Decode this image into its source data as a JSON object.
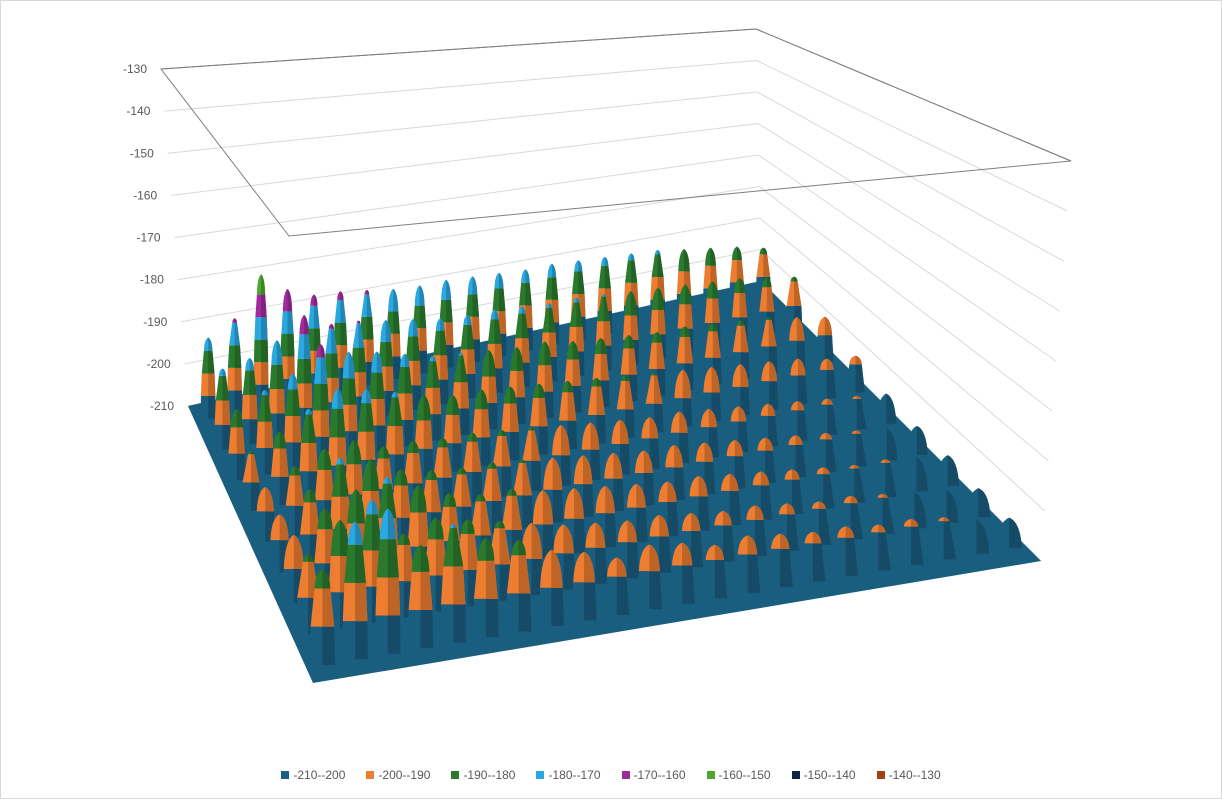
{
  "chart_data": {
    "type": "surface",
    "title": "",
    "z_axis": {
      "min": -210,
      "max": -130,
      "major_unit": 10,
      "tick_labels": [
        "-130",
        "-140",
        "-150",
        "-160",
        "-170",
        "-180",
        "-190",
        "-200",
        "-210"
      ]
    },
    "floor_value": -210,
    "legend_position": "bottom",
    "bands": [
      {
        "label": "-210--200",
        "from": -210,
        "to": -200,
        "color": "#1a5e7f"
      },
      {
        "label": "-200--190",
        "from": -200,
        "to": -190,
        "color": "#ed7d31"
      },
      {
        "label": "-190--180",
        "from": -190,
        "to": -180,
        "color": "#2a7a2e"
      },
      {
        "label": "-180--170",
        "from": -180,
        "to": -170,
        "color": "#2aa8e0"
      },
      {
        "label": "-170--160",
        "from": -170,
        "to": -160,
        "color": "#a12a9c"
      },
      {
        "label": "-160--150",
        "from": -160,
        "to": -150,
        "color": "#4ea72e"
      },
      {
        "label": "-150--140",
        "from": -150,
        "to": -140,
        "color": "#0e2841"
      },
      {
        "label": "-140--130",
        "from": -140,
        "to": -130,
        "color": "#a0430a"
      }
    ],
    "grid_rows": 9,
    "grid_cols": 22,
    "peaks": [
      [
        -185,
        -174,
        -172,
        -183,
        -179,
        -184,
        -186,
        -190,
        -192,
        -195,
        -193,
        -194,
        -196,
        -195,
        -196,
        -197,
        -197,
        -198,
        -198,
        -199,
        -201,
        -202
      ],
      [
        -188,
        -180,
        -176,
        -187,
        -184,
        -186,
        -188,
        -190,
        -192,
        -193,
        -194,
        -194,
        -195,
        -196,
        -196,
        -197,
        -198,
        -198,
        -199,
        -200,
        -201,
        -202
      ],
      [
        -190,
        -184,
        -180,
        -178,
        -182,
        -186,
        -188,
        -188,
        -190,
        -191,
        -192,
        -193,
        -194,
        -194,
        -195,
        -196,
        -197,
        -198,
        -199,
        -199,
        -200,
        -201
      ],
      [
        -192,
        -186,
        -178,
        -180,
        -185,
        -187,
        -188,
        -188,
        -189,
        -190,
        -191,
        -192,
        -193,
        -193,
        -194,
        -195,
        -196,
        -197,
        -198,
        -199,
        -200,
        -201
      ],
      [
        -192,
        -187,
        -183,
        -182,
        -186,
        -186,
        -187,
        -187,
        -188,
        -189,
        -190,
        -191,
        -192,
        -193,
        -193,
        -194,
        -195,
        -196,
        -197,
        -198,
        -199,
        -200
      ],
      [
        -189,
        -184,
        -178,
        -173,
        -175,
        -178,
        -181,
        -183,
        -183,
        -184,
        -185,
        -186,
        -187,
        -188,
        -189,
        -190,
        -191,
        -192,
        -193,
        -194,
        -196,
        -197
      ],
      [
        -183,
        -178,
        -174,
        -165,
        -170,
        -172,
        -175,
        -178,
        -179,
        -180,
        -181,
        -181,
        -183,
        -184,
        -185,
        -186,
        -186,
        -187,
        -188,
        -189,
        -191,
        -193
      ],
      [
        -177,
        -175,
        -170,
        -162,
        -168,
        -169,
        -171,
        -173,
        -175,
        -176,
        -176,
        -177,
        -178,
        -178,
        -179,
        -180,
        -181,
        -182,
        -183,
        -184,
        -186,
        -188
      ],
      [
        -174,
        -168,
        -151,
        -160,
        -165,
        -166,
        -168,
        -170,
        -171,
        -171,
        -172,
        -173,
        -174,
        -174,
        -175,
        -176,
        -177,
        -178,
        -180,
        -182,
        -184,
        -187
      ]
    ]
  }
}
